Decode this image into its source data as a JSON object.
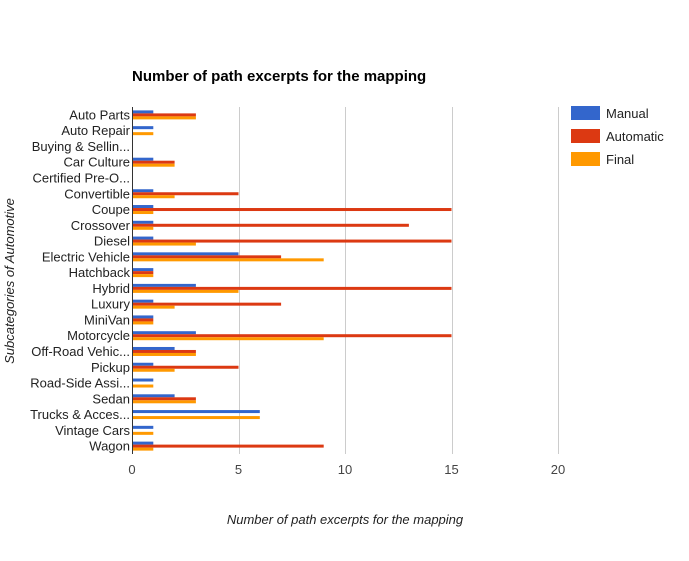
{
  "chart_data": {
    "type": "bar",
    "orientation": "horizontal",
    "title": "Number of path excerpts for the mapping",
    "xlabel": "Number of path excerpts for the mapping",
    "ylabel": "Subcategories of Automotive",
    "xlim": [
      0,
      20
    ],
    "xticks": [
      "0",
      "5",
      "10",
      "15",
      "20"
    ],
    "grid": true,
    "legend_position": "right",
    "categories": [
      "Auto Parts",
      "Auto Repair",
      "Buying & Sellin...",
      "Car Culture",
      "Certified Pre-O...",
      "Convertible",
      "Coupe",
      "Crossover",
      "Diesel",
      "Electric Vehicle",
      "Hatchback",
      "Hybrid",
      "Luxury",
      "MiniVan",
      "Motorcycle",
      "Off-Road Vehic...",
      "Pickup",
      "Road-Side Assi...",
      "Sedan",
      "Trucks & Acces...",
      "Vintage Cars",
      "Wagon"
    ],
    "series": [
      {
        "name": "Manual",
        "color": "#3366cc",
        "values": [
          1,
          1,
          0,
          1,
          0,
          1,
          1,
          1,
          1,
          5,
          1,
          3,
          1,
          1,
          3,
          2,
          1,
          1,
          2,
          6,
          1,
          1
        ]
      },
      {
        "name": "Automatic",
        "color": "#dc3912",
        "values": [
          3,
          0,
          0,
          2,
          0,
          5,
          15,
          13,
          15,
          7,
          1,
          15,
          7,
          1,
          15,
          3,
          5,
          0,
          3,
          0,
          0,
          9
        ]
      },
      {
        "name": "Final",
        "color": "#ff9900",
        "values": [
          3,
          1,
          0,
          2,
          0,
          2,
          1,
          1,
          3,
          9,
          1,
          5,
          2,
          1,
          9,
          3,
          2,
          1,
          3,
          6,
          1,
          1
        ]
      }
    ]
  }
}
